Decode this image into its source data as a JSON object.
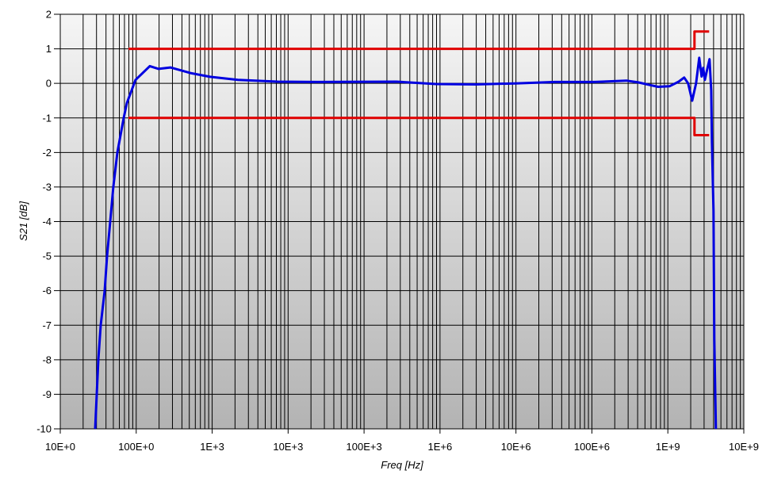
{
  "chart_data": {
    "type": "line",
    "title": "",
    "xlabel": "Freq [Hz]",
    "ylabel": "S21 [dB]",
    "xscale": "log",
    "xlim": [
      10,
      10000000000
    ],
    "ylim": [
      -10,
      2
    ],
    "grid": true,
    "x_tick_labels": [
      "10E+0",
      "100E+0",
      "1E+3",
      "10E+3",
      "100E+3",
      "1E+6",
      "10E+6",
      "100E+6",
      "1E+9",
      "10E+9"
    ],
    "y_ticks": [
      2,
      1,
      0,
      -1,
      -2,
      -3,
      -4,
      -5,
      -6,
      -7,
      -8,
      -9,
      -10
    ],
    "series": [
      {
        "name": "S21",
        "color": "#0000e0",
        "x": [
          28.8,
          30.2,
          31.7,
          34.1,
          38.4,
          41.3,
          45.5,
          50.0,
          56.4,
          68.4,
          75.3,
          98,
          151,
          197,
          282,
          515,
          940,
          2180,
          7250,
          24100,
          267000,
          887000,
          2950000,
          9800000,
          32700000,
          108000000,
          284000000,
          407000000,
          584000000,
          743000000,
          1060000000,
          1390000000,
          1640000000,
          1850000000,
          2090000000,
          2350000000,
          2590000000,
          2780000000,
          2920000000,
          3070000000,
          3290000000,
          3540000000,
          3720000000,
          3800000000,
          3990000000,
          4090000000,
          4290000000
        ],
        "y": [
          -10,
          -9,
          -8,
          -7,
          -6,
          -5,
          -4,
          -3,
          -2,
          -1,
          -0.57,
          0.1,
          0.5,
          0.42,
          0.46,
          0.3,
          0.19,
          0.1,
          0.05,
          0.04,
          0.05,
          -0.02,
          -0.03,
          0,
          0.04,
          0.04,
          0.08,
          0.03,
          -0.05,
          -0.1,
          -0.08,
          0.05,
          0.17,
          0,
          -0.5,
          0,
          0.74,
          0.2,
          0.45,
          0.1,
          0.4,
          0.7,
          -0.2,
          -1.7,
          -3.7,
          -7.4,
          -10
        ]
      },
      {
        "name": "upper-limit",
        "color": "#e00000",
        "x": [
          79,
          2240000000,
          2240000000,
          3500000000
        ],
        "y": [
          1,
          1,
          1.5,
          1.5
        ]
      },
      {
        "name": "lower-limit",
        "color": "#e00000",
        "x": [
          79,
          2240000000,
          2240000000,
          3500000000
        ],
        "y": [
          -1,
          -1,
          -1.5,
          -1.5
        ]
      }
    ]
  }
}
